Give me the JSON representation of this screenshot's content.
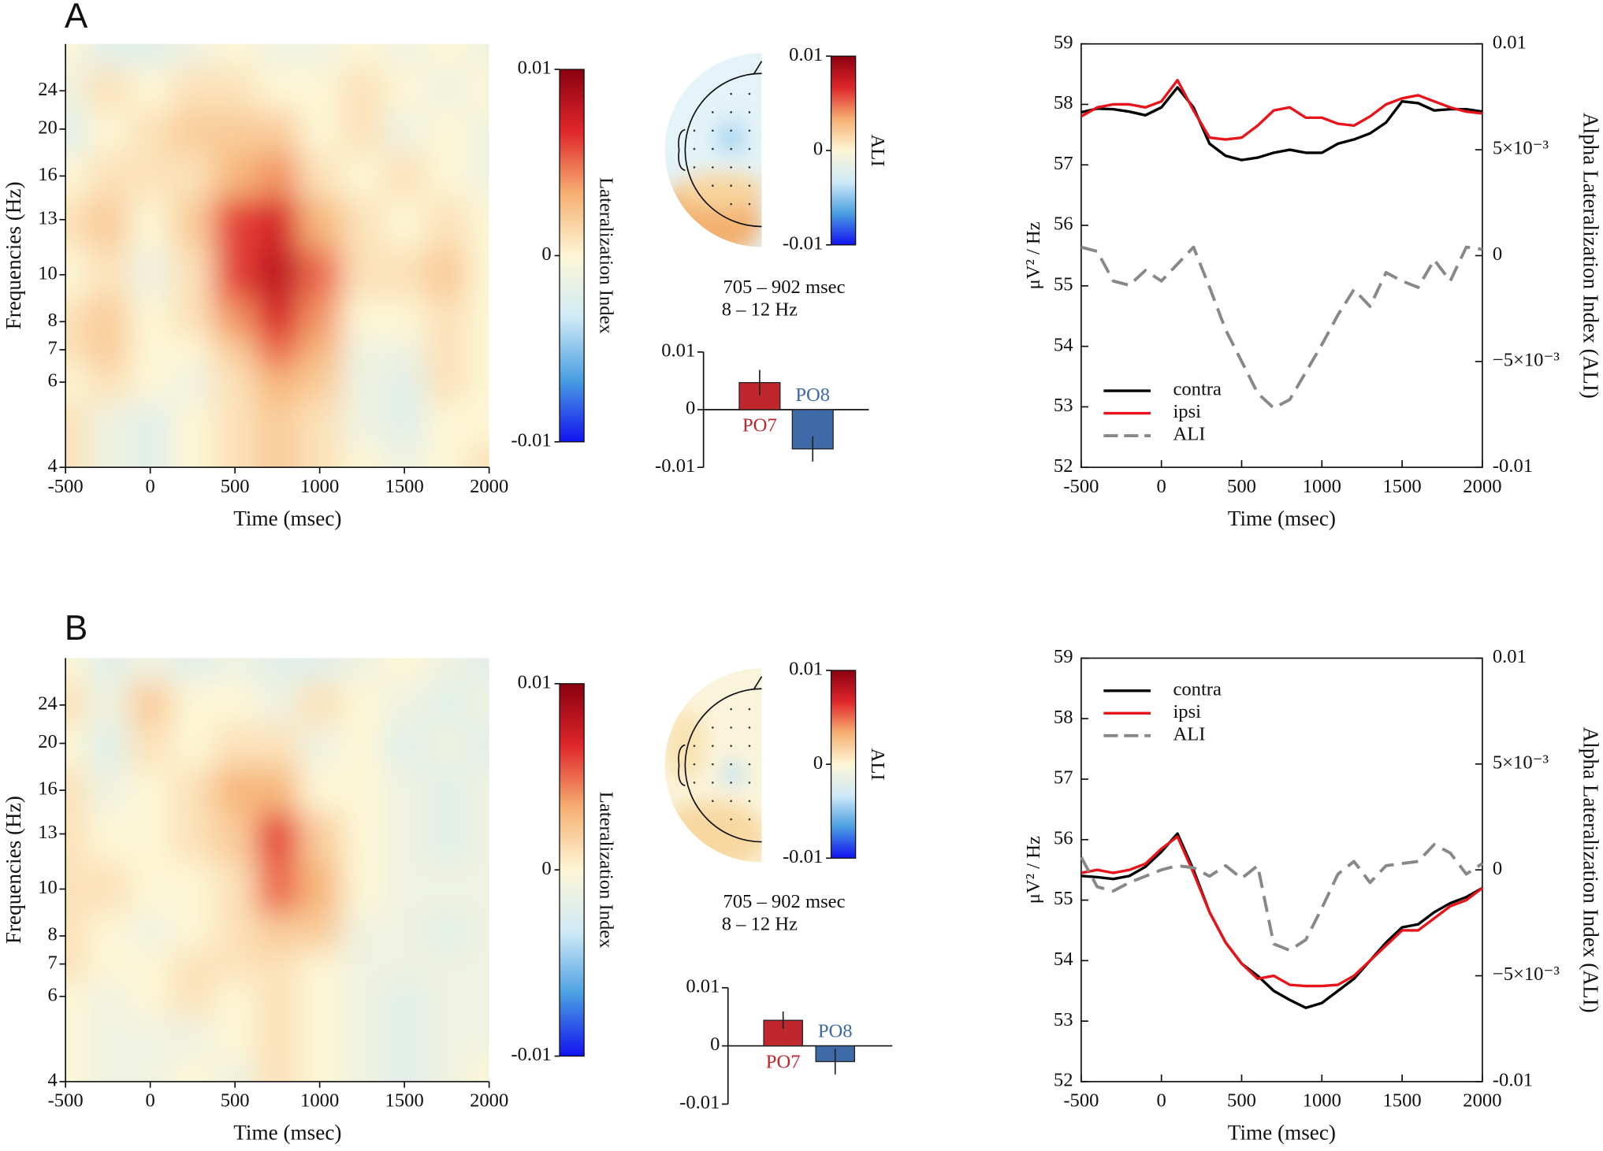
{
  "panel_labels": [
    "A",
    "B"
  ],
  "chart_data": [
    {
      "type": "heatmap",
      "xlabel": "Time (msec)",
      "ylabel": "Frequencies (Hz)",
      "x": [
        -500,
        -250,
        0,
        250,
        500,
        750,
        1000,
        1250,
        1500,
        1750,
        2000
      ],
      "y": [
        4,
        5,
        6,
        7,
        8,
        10,
        13,
        16,
        20,
        24,
        30
      ],
      "z": [
        [
          0.001,
          -0.001,
          -0.002,
          0.0,
          0.001,
          0.002,
          0.001,
          0.0,
          -0.001,
          0.0,
          0.001
        ],
        [
          0.001,
          -0.001,
          -0.002,
          0.0,
          0.001,
          0.002,
          0.001,
          -0.001,
          -0.002,
          0.0,
          0.0
        ],
        [
          0.0,
          0.001,
          0.0,
          -0.001,
          0.001,
          0.003,
          0.002,
          -0.001,
          -0.002,
          0.001,
          0.0
        ],
        [
          0.001,
          0.002,
          0.0,
          0.0,
          0.002,
          0.005,
          0.003,
          -0.001,
          -0.001,
          0.001,
          0.0
        ],
        [
          0.001,
          0.002,
          0.0,
          0.001,
          0.004,
          0.007,
          0.004,
          0.0,
          0.0,
          0.001,
          0.0
        ],
        [
          0.0,
          0.001,
          -0.001,
          0.001,
          0.006,
          0.008,
          0.005,
          0.001,
          0.001,
          0.002,
          0.0
        ],
        [
          0.001,
          0.002,
          0.0,
          0.002,
          0.006,
          0.007,
          0.003,
          0.001,
          0.0,
          0.001,
          0.0
        ],
        [
          0.0,
          0.001,
          0.001,
          0.001,
          0.003,
          0.004,
          0.001,
          0.0,
          0.001,
          0.0,
          -0.001
        ],
        [
          -0.002,
          0.0,
          0.001,
          0.002,
          0.002,
          0.002,
          0.0,
          0.001,
          -0.001,
          0.0,
          -0.001
        ],
        [
          -0.001,
          0.001,
          0.0,
          0.001,
          0.001,
          0.0,
          0.0,
          0.001,
          0.0,
          -0.001,
          0.0
        ],
        [
          0.0,
          -0.002,
          -0.002,
          -0.001,
          0.0,
          -0.001,
          -0.001,
          0.0,
          -0.001,
          0.0,
          -0.001
        ]
      ],
      "xlim": [
        -500,
        2000
      ],
      "xticks": [
        -500,
        0,
        500,
        1000,
        1500,
        2000
      ],
      "ylim": [
        4,
        30
      ],
      "yscale": "log",
      "yticks": [
        4,
        6,
        7,
        8,
        10,
        13,
        16,
        20,
        24
      ],
      "zlim": [
        -0.01,
        0.01
      ],
      "zticks": [
        -0.01,
        0,
        0.01
      ],
      "zlabel": "Lateralization Index",
      "colormap": [
        "#1212f0",
        "#4a9fe2",
        "#cfeaf6",
        "#fdf6d6",
        "#f6b072",
        "#e0262a",
        "#8a0010"
      ]
    },
    {
      "type": "topomap",
      "title": "705 – 902 msec",
      "subtitle": "8 – 12 Hz",
      "zlim": [
        -0.01,
        0.01
      ],
      "zticks": [
        -0.01,
        0,
        0.01
      ],
      "zlabel": "ALI",
      "colormap": [
        "#1212f0",
        "#4a9fe2",
        "#cfeaf6",
        "#fdf6d6",
        "#f6b072",
        "#e0262a",
        "#8a0010"
      ]
    },
    {
      "type": "bar",
      "categories": [
        "PO7",
        "PO8"
      ],
      "values": [
        0.0047,
        -0.0068
      ],
      "errors": [
        0.0022,
        0.0022
      ],
      "colors": [
        "#c0272d",
        "#3e6aa8"
      ],
      "ylim": [
        -0.01,
        0.01
      ],
      "yticks": [
        -0.01,
        0,
        0.01
      ]
    },
    {
      "type": "line",
      "xlabel": "Time (msec)",
      "ylabel": "μV² / Hz",
      "y2label": "Alpha Lateralization Index (ALI)",
      "x": [
        -500,
        -400,
        -300,
        -200,
        -100,
        0,
        100,
        200,
        300,
        400,
        500,
        600,
        700,
        800,
        900,
        1000,
        1100,
        1200,
        1300,
        1400,
        1500,
        1600,
        1700,
        1800,
        1900,
        2000
      ],
      "series": [
        {
          "name": "contra",
          "color": "#000000",
          "values": [
            57.87,
            57.93,
            57.92,
            57.88,
            57.82,
            57.95,
            58.28,
            57.95,
            57.35,
            57.15,
            57.08,
            57.12,
            57.2,
            57.25,
            57.2,
            57.2,
            57.35,
            57.42,
            57.52,
            57.7,
            58.05,
            58.02,
            57.9,
            57.92,
            57.92,
            57.88
          ]
        },
        {
          "name": "ipsi",
          "color": "#e8141a",
          "values": [
            57.8,
            57.95,
            58.0,
            58.0,
            57.95,
            58.05,
            58.4,
            57.9,
            57.45,
            57.42,
            57.45,
            57.65,
            57.9,
            57.95,
            57.78,
            57.78,
            57.68,
            57.65,
            57.8,
            58.0,
            58.1,
            58.15,
            58.05,
            57.95,
            57.88,
            57.85
          ]
        },
        {
          "name": "ALI",
          "color": "#888888",
          "dashed": true,
          "axis": "y2",
          "values": [
            0.0004,
            0.0002,
            -0.0012,
            -0.0014,
            -0.0007,
            -0.0012,
            -0.0004,
            0.0004,
            -0.0015,
            -0.0035,
            -0.005,
            -0.0065,
            -0.0072,
            -0.0068,
            -0.0055,
            -0.0042,
            -0.0028,
            -0.0016,
            -0.0024,
            -0.0008,
            -0.0012,
            -0.0015,
            -0.0002,
            -0.0012,
            0.0004,
            0.0003
          ]
        }
      ],
      "xlim": [
        -500,
        2000
      ],
      "xticks": [
        -500,
        0,
        500,
        1000,
        1500,
        2000
      ],
      "ylim": [
        52,
        59
      ],
      "yticks": [
        52,
        53,
        54,
        55,
        56,
        57,
        58,
        59
      ],
      "y2lim": [
        -0.01,
        0.01
      ],
      "y2ticks": [
        -0.01,
        {
          "value": -0.005,
          "label": "−5×10⁻³"
        },
        0,
        {
          "value": 0.005,
          "label": "5×10⁻³"
        },
        0.01
      ],
      "legend": "lower left"
    },
    {
      "type": "heatmap",
      "xlabel": "Time (msec)",
      "ylabel": "Frequencies (Hz)",
      "x": [
        -500,
        -250,
        0,
        250,
        500,
        750,
        1000,
        1250,
        1500,
        1750,
        2000
      ],
      "y": [
        4,
        5,
        6,
        7,
        8,
        10,
        13,
        16,
        20,
        24,
        30
      ],
      "z": [
        [
          0.0,
          -0.001,
          -0.001,
          0.0,
          -0.001,
          0.001,
          0.0,
          -0.001,
          -0.002,
          -0.001,
          0.0
        ],
        [
          0.0,
          -0.001,
          -0.001,
          -0.001,
          0.0,
          0.001,
          0.0,
          -0.001,
          -0.002,
          -0.001,
          -0.001
        ],
        [
          0.0,
          -0.001,
          0.0,
          0.001,
          0.0,
          0.001,
          0.0,
          -0.001,
          -0.002,
          -0.001,
          -0.001
        ],
        [
          0.001,
          0.0,
          0.0,
          0.001,
          0.001,
          0.001,
          0.0,
          -0.001,
          -0.001,
          -0.001,
          -0.001
        ],
        [
          0.001,
          0.0,
          -0.001,
          0.0,
          0.001,
          0.002,
          0.002,
          -0.001,
          -0.001,
          -0.002,
          -0.001
        ],
        [
          0.001,
          0.001,
          0.0,
          0.0,
          0.001,
          0.005,
          0.003,
          0.0,
          -0.001,
          -0.001,
          -0.001
        ],
        [
          0.001,
          0.0,
          0.0,
          0.001,
          0.002,
          0.006,
          0.002,
          0.0,
          -0.001,
          -0.002,
          -0.001
        ],
        [
          0.001,
          -0.001,
          0.0,
          0.001,
          0.003,
          0.003,
          0.0,
          0.0,
          -0.001,
          -0.002,
          -0.001
        ],
        [
          0.0,
          -0.002,
          0.001,
          0.0,
          0.001,
          0.001,
          -0.001,
          0.0,
          -0.002,
          -0.001,
          -0.002
        ],
        [
          0.001,
          -0.001,
          0.002,
          0.0,
          0.0,
          -0.001,
          0.001,
          0.0,
          -0.001,
          -0.002,
          -0.001
        ],
        [
          0.0,
          -0.002,
          -0.001,
          -0.002,
          -0.001,
          -0.002,
          -0.002,
          -0.001,
          0.0,
          -0.001,
          -0.002
        ]
      ],
      "xlim": [
        -500,
        2000
      ],
      "xticks": [
        -500,
        0,
        500,
        1000,
        1500,
        2000
      ],
      "ylim": [
        4,
        30
      ],
      "yscale": "log",
      "yticks": [
        4,
        6,
        7,
        8,
        10,
        13,
        16,
        20,
        24
      ],
      "zlim": [
        -0.01,
        0.01
      ],
      "zticks": [
        -0.01,
        0,
        0.01
      ],
      "zlabel": "Lateralization Index",
      "colormap": [
        "#1212f0",
        "#4a9fe2",
        "#cfeaf6",
        "#fdf6d6",
        "#f6b072",
        "#e0262a",
        "#8a0010"
      ]
    },
    {
      "type": "topomap",
      "title": "705 – 902 msec",
      "subtitle": "8 – 12 Hz",
      "zlim": [
        -0.01,
        0.01
      ],
      "zticks": [
        -0.01,
        0,
        0.01
      ],
      "zlabel": "ALI",
      "colormap": [
        "#1212f0",
        "#4a9fe2",
        "#cfeaf6",
        "#fdf6d6",
        "#f6b072",
        "#e0262a",
        "#8a0010"
      ]
    },
    {
      "type": "bar",
      "categories": [
        "PO7",
        "PO8"
      ],
      "values": [
        0.0044,
        -0.0027
      ],
      "errors": [
        0.0015,
        0.0022
      ],
      "colors": [
        "#c0272d",
        "#3e6aa8"
      ],
      "ylim": [
        -0.01,
        0.01
      ],
      "yticks": [
        -0.01,
        0,
        0.01
      ]
    },
    {
      "type": "line",
      "xlabel": "Time (msec)",
      "ylabel": "μV² / Hz",
      "y2label": "Alpha Lateralization Index (ALI)",
      "x": [
        -500,
        -400,
        -300,
        -200,
        -100,
        0,
        100,
        200,
        300,
        400,
        500,
        600,
        700,
        800,
        900,
        1000,
        1100,
        1200,
        1300,
        1400,
        1500,
        1600,
        1700,
        1800,
        1900,
        2000
      ],
      "series": [
        {
          "name": "contra",
          "color": "#000000",
          "values": [
            55.4,
            55.38,
            55.35,
            55.4,
            55.55,
            55.8,
            56.1,
            55.5,
            54.8,
            54.3,
            53.95,
            53.75,
            53.5,
            53.35,
            53.22,
            53.3,
            53.5,
            53.7,
            54.0,
            54.3,
            54.55,
            54.6,
            54.8,
            54.95,
            55.05,
            55.2
          ]
        },
        {
          "name": "ipsi",
          "color": "#e8141a",
          "values": [
            55.45,
            55.5,
            55.45,
            55.5,
            55.6,
            55.85,
            56.05,
            55.45,
            54.8,
            54.3,
            53.95,
            53.7,
            53.75,
            53.6,
            53.58,
            53.58,
            53.6,
            53.75,
            54.0,
            54.25,
            54.5,
            54.5,
            54.7,
            54.9,
            55.0,
            55.2
          ]
        },
        {
          "name": "ALI",
          "color": "#888888",
          "dashed": true,
          "axis": "y2",
          "values": [
            0.0006,
            -0.0008,
            -0.001,
            -0.0006,
            -0.0003,
            0,
            0.0002,
            0.0001,
            -0.0003,
            0.0002,
            -0.0004,
            0.0002,
            -0.0035,
            -0.0038,
            -0.0033,
            -0.0018,
            -0.0002,
            0.0004,
            -0.0006,
            0.0002,
            0.0003,
            0.0004,
            0.0012,
            0.0008,
            -0.0002,
            0.0003
          ]
        }
      ],
      "xlim": [
        -500,
        2000
      ],
      "xticks": [
        -500,
        0,
        500,
        1000,
        1500,
        2000
      ],
      "ylim": [
        52,
        59
      ],
      "yticks": [
        52,
        53,
        54,
        55,
        56,
        57,
        58,
        59
      ],
      "y2lim": [
        -0.01,
        0.01
      ],
      "y2ticks": [
        -0.01,
        {
          "value": -0.005,
          "label": "−5×10⁻³"
        },
        0,
        {
          "value": 0.005,
          "label": "5×10⁻³"
        },
        0.01
      ],
      "legend": "upper left"
    }
  ]
}
